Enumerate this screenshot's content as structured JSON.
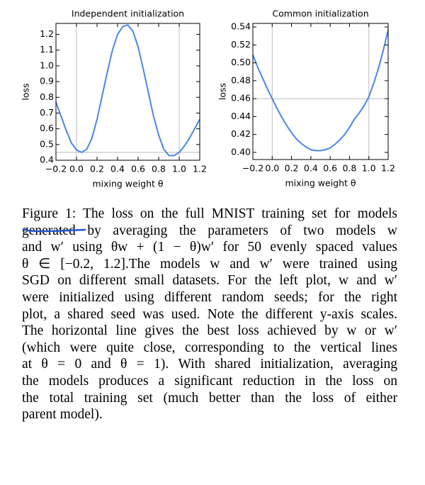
{
  "chart_data": [
    {
      "type": "line",
      "title": "Independent initialization",
      "xlabel": "mixing weight θ",
      "ylabel": "loss",
      "x": [
        -0.2,
        -0.15,
        -0.1,
        -0.05,
        0,
        0.05,
        0.1,
        0.15,
        0.2,
        0.25,
        0.3,
        0.35,
        0.4,
        0.45,
        0.5,
        0.55,
        0.6,
        0.65,
        0.7,
        0.75,
        0.8,
        0.85,
        0.9,
        0.95,
        1.0,
        1.05,
        1.1,
        1.15,
        1.2
      ],
      "series": [
        {
          "color": "#4a86e8",
          "values": [
            0.77,
            0.68,
            0.59,
            0.51,
            0.465,
            0.45,
            0.47,
            0.54,
            0.66,
            0.81,
            0.96,
            1.1,
            1.2,
            1.25,
            1.26,
            1.22,
            1.12,
            0.98,
            0.83,
            0.68,
            0.56,
            0.47,
            0.43,
            0.43,
            0.45,
            0.49,
            0.54,
            0.6,
            0.66
          ]
        }
      ],
      "hline": 0.45,
      "vlines": [
        0,
        1
      ],
      "xlim": [
        -0.2,
        1.2
      ],
      "ylim": [
        0.4,
        1.27
      ],
      "xticks": [
        {
          "value": -0.2,
          "label": "−0.2"
        },
        {
          "value": 0,
          "label": "0.0"
        },
        0.2,
        0.4,
        0.6,
        0.8,
        {
          "value": 1,
          "label": "1.0"
        },
        1.2
      ],
      "yticks": [
        0.4,
        0.5,
        0.6,
        0.7,
        0.8,
        0.9,
        {
          "value": 1,
          "label": "1.0"
        },
        1.1,
        1.2
      ]
    },
    {
      "type": "line",
      "title": "Common initialization",
      "xlabel": "mixing weight θ",
      "ylabel": "loss",
      "x": [
        -0.2,
        -0.15,
        -0.1,
        -0.05,
        0,
        0.05,
        0.1,
        0.15,
        0.2,
        0.25,
        0.3,
        0.35,
        0.4,
        0.45,
        0.5,
        0.55,
        0.6,
        0.65,
        0.7,
        0.75,
        0.8,
        0.85,
        0.9,
        0.95,
        1.0,
        1.05,
        1.1,
        1.15,
        1.2
      ],
      "series": [
        {
          "color": "#4a86e8",
          "values": [
            0.509,
            0.495,
            0.483,
            0.471,
            0.46,
            0.449,
            0.439,
            0.43,
            0.422,
            0.415,
            0.41,
            0.406,
            0.403,
            0.402,
            0.402,
            0.403,
            0.405,
            0.409,
            0.414,
            0.42,
            0.428,
            0.437,
            0.444,
            0.452,
            0.462,
            0.477,
            0.494,
            0.514,
            0.537
          ]
        }
      ],
      "hline": 0.46,
      "vlines": [
        0,
        1
      ],
      "xlim": [
        -0.2,
        1.2
      ],
      "ylim": [
        0.392,
        0.544
      ],
      "xticks": [
        {
          "value": -0.2,
          "label": "−0.2"
        },
        {
          "value": 0,
          "label": "0.0"
        },
        0.2,
        0.4,
        0.6,
        0.8,
        {
          "value": 1,
          "label": "1.0"
        },
        1.2
      ],
      "yticks": [
        {
          "value": 0.4,
          "label": "0.40"
        },
        0.42,
        0.44,
        0.46,
        0.48,
        {
          "value": 0.5,
          "label": "0.50"
        },
        0.52,
        0.54
      ]
    }
  ],
  "caption": {
    "lines": [
      "Figure 1: The loss on the full MNIST training set for models",
      "generated by averaging the parameters of two models w",
      "and w′ using θw + (1 − θ)w′ for 50 evenly spaced values",
      "θ ∈ [−0.2, 1.2].The models w and w′ were trained using",
      "SGD on different small datasets. For the left plot, w and w′",
      "were initialized using different random seeds; for the right",
      "plot, a shared seed was used. Note the different y-axis scales.",
      "The horizontal line gives the best loss achieved by w or w′",
      "(which were quite close, corresponding to the vertical lines",
      "at θ = 0 and θ = 1). With shared initialization, averaging",
      "the models produces a significant reduction in the loss on",
      "the total training set (much better than the loss of either",
      "parent model)."
    ]
  }
}
